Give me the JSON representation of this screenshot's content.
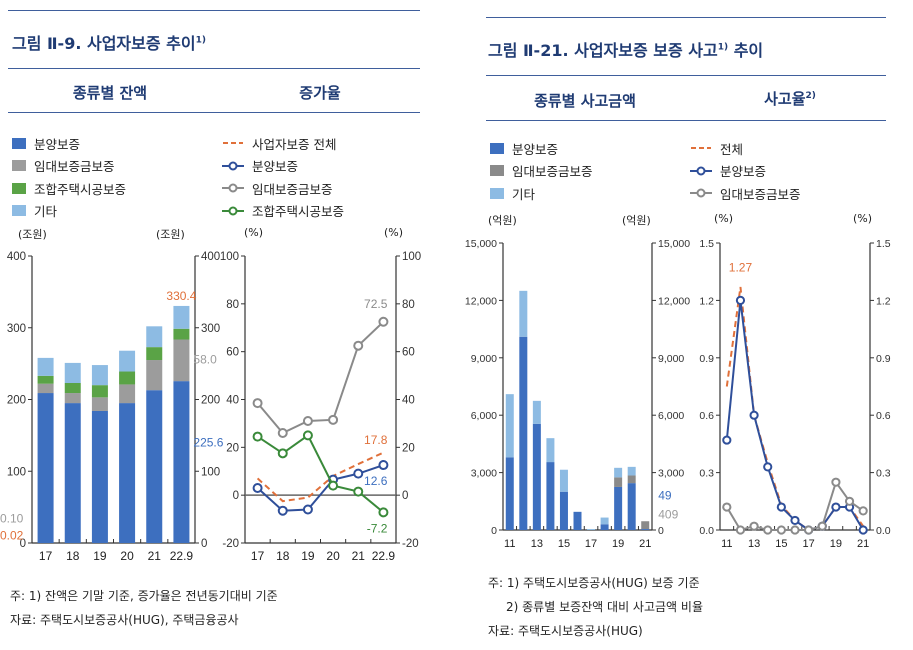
{
  "left": {
    "title": "그림 Ⅱ-9. 사업자보증 추이",
    "title_sup": "1)",
    "sub1": "종류별 잔액",
    "sub2": "증가율",
    "legend_bar": [
      {
        "label": "분양보증",
        "color": "#3d6fbf"
      },
      {
        "label": "임대보증금보증",
        "color": "#9c9c9c"
      },
      {
        "label": "조합주택시공보증",
        "color": "#5aa346"
      },
      {
        "label": "기타",
        "color": "#8dbbe3"
      }
    ],
    "legend_line": [
      {
        "label": "사업자보증 전체",
        "color": "#e0703a",
        "style": "dashed"
      },
      {
        "label": "분양보증",
        "color": "#2f4f9a",
        "style": "marker"
      },
      {
        "label": "임대보증금보증",
        "color": "#8a8a8a",
        "style": "marker"
      },
      {
        "label": "조합주택시공보증",
        "color": "#3a8a3a",
        "style": "marker"
      }
    ],
    "units": [
      "(조원)",
      "(조원)",
      "(%)",
      "(%)"
    ],
    "notes": [
      "주: 1) 잔액은 기말 기준, 증가율은 전년동기대비 기준",
      "자료: 주택도시보증공사(HUG), 주택금융공사"
    ]
  },
  "right": {
    "title": "그림 Ⅱ-21. 사업자보증 보증 사고",
    "title_sup": "1)",
    "title_end": " 추이",
    "sub1": "종류별 사고금액",
    "sub2": "사고율",
    "sub2_sup": "2)",
    "legend_bar": [
      {
        "label": "분양보증",
        "color": "#3d6fbf"
      },
      {
        "label": "임대보증금보증",
        "color": "#8a8a8a"
      },
      {
        "label": "기타",
        "color": "#8dbbe3"
      }
    ],
    "legend_line": [
      {
        "label": "전체",
        "color": "#e0703a",
        "style": "dashed"
      },
      {
        "label": "분양보증",
        "color": "#2f4f9a",
        "style": "marker"
      },
      {
        "label": "임대보증금보증",
        "color": "#8a8a8a",
        "style": "marker"
      }
    ],
    "units": [
      "(억원)",
      "(억원)",
      "(%)",
      "(%)"
    ],
    "notes": [
      "주: 1) 주택도시보증공사(HUG) 보증 기준",
      "2) 종류별 보증잔액 대비 사고금액 비율",
      "자료: 주택도시보증공사(HUG)"
    ]
  },
  "chart_data": [
    {
      "type": "bar",
      "stacked": true,
      "categories": [
        "17",
        "18",
        "19",
        "20",
        "21",
        "22.9"
      ],
      "ylim": [
        0,
        400
      ],
      "yticks": [
        0,
        100,
        200,
        300,
        400
      ],
      "series": [
        {
          "name": "분양보증",
          "color": "#3d6fbf",
          "values": [
            209,
            195,
            184,
            195,
            213,
            225.6
          ]
        },
        {
          "name": "임대보증금보증",
          "color": "#9c9c9c",
          "values": [
            13,
            14,
            19,
            26,
            42,
            58.0
          ]
        },
        {
          "name": "조합주택시공보증",
          "color": "#5aa346",
          "values": [
            11,
            14,
            17,
            18,
            18,
            15
          ]
        },
        {
          "name": "기타",
          "color": "#8dbbe3",
          "values": [
            25,
            28,
            28,
            29,
            29,
            31.8
          ]
        }
      ],
      "annotations": [
        {
          "text": "330.4",
          "color": "#e0703a",
          "cat": 5,
          "y": 330.4,
          "pos": "above"
        },
        {
          "text": "58.0",
          "color": "#9c9c9c",
          "cat": 5,
          "y": 256,
          "pos": "right"
        },
        {
          "text": "225.6",
          "color": "#3d6fbf",
          "cat": 5,
          "y": 140,
          "pos": "right"
        }
      ]
    },
    {
      "type": "line",
      "categories": [
        "17",
        "18",
        "19",
        "20",
        "21",
        "22.9"
      ],
      "ylim": [
        -20,
        100
      ],
      "yticks": [
        -20,
        0,
        20,
        40,
        60,
        80,
        100
      ],
      "series": [
        {
          "name": "사업자보증 전체",
          "color": "#e0703a",
          "dashed": true,
          "values": [
            7,
            -2.5,
            -1,
            8,
            13,
            17.8
          ]
        },
        {
          "name": "분양보증",
          "color": "#2f4f9a",
          "values": [
            3,
            -6.5,
            -6,
            6.5,
            9,
            12.6
          ]
        },
        {
          "name": "임대보증금보증",
          "color": "#8a8a8a",
          "values": [
            38.5,
            26,
            31,
            31.5,
            62.5,
            72.5
          ]
        },
        {
          "name": "조합주택시공보증",
          "color": "#3a8a3a",
          "values": [
            24.5,
            17.5,
            25,
            4,
            1.5,
            -7.2
          ]
        }
      ],
      "annotations": [
        {
          "text": "72.5",
          "color": "#8a8a8a",
          "cat": 5,
          "y": 80,
          "pos": "left"
        },
        {
          "text": "17.8",
          "color": "#e0703a",
          "cat": 5,
          "y": 23,
          "pos": "left"
        },
        {
          "text": "12.6",
          "color": "#3d6fbf",
          "cat": 5,
          "y": 6,
          "pos": "left"
        },
        {
          "text": "-7.2",
          "color": "#3a8a3a",
          "cat": 5,
          "y": -14,
          "pos": "left"
        }
      ]
    },
    {
      "type": "bar",
      "stacked": true,
      "categories": [
        "11",
        "12",
        "13",
        "14",
        "15",
        "16",
        "17",
        "18",
        "19",
        "20",
        "21"
      ],
      "xticklabels": [
        "11",
        "",
        "13",
        "",
        "15",
        "",
        "17",
        "",
        "19",
        "",
        "21"
      ],
      "ylim": [
        0,
        15000
      ],
      "yticks": [
        0,
        3000,
        6000,
        9000,
        12000,
        15000
      ],
      "yticklabels": [
        "0",
        "3,000",
        "6,000",
        "9,000",
        "12,000",
        "15,000"
      ],
      "series": [
        {
          "name": "분양보증",
          "color": "#3d6fbf",
          "values": [
            3800,
            10100,
            5550,
            3550,
            2000,
            950,
            0,
            300,
            2250,
            2450,
            49
          ]
        },
        {
          "name": "임대보증금보증",
          "color": "#8a8a8a",
          "values": [
            0,
            0,
            0,
            0,
            0,
            0,
            0,
            0,
            500,
            400,
            409
          ]
        },
        {
          "name": "기타",
          "color": "#8dbbe3",
          "values": [
            3300,
            2400,
            1200,
            1250,
            1150,
            0,
            50,
            350,
            500,
            450,
            0
          ]
        }
      ],
      "annotations": [
        {
          "text": "49",
          "color": "#3d6fbf",
          "cat": 10,
          "y": 1800,
          "pos": "right"
        },
        {
          "text": "409",
          "color": "#9c9c9c",
          "cat": 10,
          "y": 800,
          "pos": "right"
        }
      ]
    },
    {
      "type": "line",
      "categories": [
        "11",
        "12",
        "13",
        "14",
        "15",
        "16",
        "17",
        "18",
        "19",
        "20",
        "21"
      ],
      "xticklabels": [
        "11",
        "",
        "13",
        "",
        "15",
        "",
        "17",
        "",
        "19",
        "",
        "21"
      ],
      "ylim": [
        0,
        1.5
      ],
      "yticks": [
        0,
        0.3,
        0.6,
        0.9,
        1.2,
        1.5
      ],
      "yticklabels": [
        "0.0",
        "0.3",
        "0.6",
        "0.9",
        "1.2",
        "1.5"
      ],
      "series": [
        {
          "name": "전체",
          "color": "#e0703a",
          "dashed": true,
          "values": [
            0.75,
            1.27,
            0.6,
            0.35,
            0.13,
            0.05,
            0,
            0.02,
            0.12,
            0.12,
            0.02
          ]
        },
        {
          "name": "분양보증",
          "color": "#2f4f9a",
          "values": [
            0.47,
            1.2,
            0.6,
            0.33,
            0.12,
            0.05,
            0,
            0.02,
            0.12,
            0.12,
            0
          ]
        },
        {
          "name": "임대보증금보증",
          "color": "#8a8a8a",
          "values": [
            0.12,
            0,
            0.02,
            0,
            0,
            0,
            0,
            0.02,
            0.25,
            0.15,
            0.1
          ]
        }
      ],
      "annotations": [
        {
          "text": "1.27",
          "color": "#e0703a",
          "cat": 1,
          "y": 1.32,
          "pos": "above"
        },
        {
          "text": "0.10",
          "color": "#9c9c9c",
          "cat": 10,
          "y": 0.06,
          "pos": "right"
        },
        {
          "text": "0.02",
          "color": "#e0703a",
          "cat": 10,
          "y": -0.03,
          "pos": "right"
        }
      ]
    }
  ]
}
